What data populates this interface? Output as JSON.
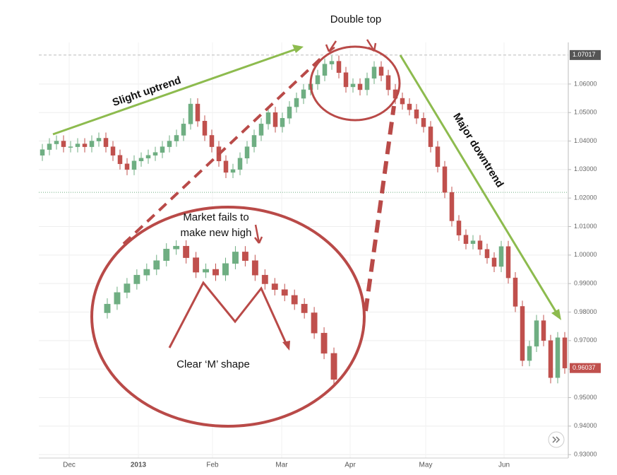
{
  "chart_data": {
    "type": "candlestick",
    "title": "Double top",
    "annotations": {
      "uptrend": "Slight uptrend",
      "downtrend": "Major downtrend",
      "fails_line1": "Market fails to",
      "fails_line2": "make new high",
      "m_shape": "Clear ‘M’ shape"
    },
    "open": [
      1.035,
      1.037,
      1.039,
      1.04,
      1.038,
      1.038,
      1.039,
      1.038,
      1.04,
      1.041,
      1.038,
      1.035,
      1.032,
      1.03,
      1.033,
      1.034,
      1.035,
      1.036,
      1.038,
      1.04,
      1.042,
      1.046,
      1.053,
      1.047,
      1.042,
      1.038,
      1.033,
      1.029,
      1.03,
      1.034,
      1.038,
      1.042,
      1.046,
      1.05,
      1.045,
      1.048,
      1.052,
      1.055,
      1.058,
      1.06,
      1.063,
      1.067,
      1.068,
      1.064,
      1.059,
      1.06,
      1.058,
      1.062,
      1.066,
      1.063,
      1.058,
      1.055,
      1.053,
      1.051,
      1.048,
      1.045,
      1.038,
      1.031,
      1.022,
      1.012,
      1.007,
      1.004,
      1.005,
      1.002,
      0.999,
      0.996,
      1.003,
      0.992,
      0.982,
      0.963,
      0.968,
      0.977,
      0.97,
      0.957,
      0.971
    ],
    "high": [
      1.039,
      1.041,
      1.042,
      1.042,
      1.04,
      1.041,
      1.041,
      1.042,
      1.043,
      1.043,
      1.04,
      1.037,
      1.034,
      1.035,
      1.036,
      1.037,
      1.038,
      1.04,
      1.042,
      1.044,
      1.048,
      1.055,
      1.055,
      1.049,
      1.044,
      1.04,
      1.035,
      1.032,
      1.036,
      1.04,
      1.044,
      1.048,
      1.052,
      1.052,
      1.05,
      1.054,
      1.057,
      1.06,
      1.062,
      1.065,
      1.069,
      1.07,
      1.07,
      1.066,
      1.062,
      1.062,
      1.064,
      1.068,
      1.068,
      1.065,
      1.06,
      1.057,
      1.055,
      1.053,
      1.05,
      1.047,
      1.04,
      1.033,
      1.024,
      1.014,
      1.009,
      1.007,
      1.007,
      1.004,
      1.001,
      1.005,
      1.005,
      0.994,
      0.984,
      0.97,
      0.979,
      0.979,
      0.972,
      0.973,
      0.973
    ],
    "low": [
      1.033,
      1.035,
      1.037,
      1.036,
      1.036,
      1.036,
      1.036,
      1.036,
      1.038,
      1.036,
      1.033,
      1.03,
      1.028,
      1.028,
      1.031,
      1.032,
      1.033,
      1.034,
      1.036,
      1.038,
      1.04,
      1.044,
      1.045,
      1.04,
      1.036,
      1.031,
      1.027,
      1.027,
      1.028,
      1.032,
      1.036,
      1.04,
      1.044,
      1.043,
      1.043,
      1.046,
      1.05,
      1.053,
      1.056,
      1.058,
      1.061,
      1.065,
      1.062,
      1.057,
      1.057,
      1.056,
      1.056,
      1.06,
      1.061,
      1.056,
      1.053,
      1.051,
      1.049,
      1.046,
      1.043,
      1.036,
      1.029,
      1.02,
      1.01,
      1.005,
      1.002,
      1.002,
      1.0,
      0.997,
      0.994,
      0.994,
      0.99,
      0.98,
      0.961,
      0.961,
      0.966,
      0.968,
      0.955,
      0.955,
      0.95837
    ],
    "close": [
      1.037,
      1.039,
      1.04,
      1.038,
      1.038,
      1.039,
      1.038,
      1.04,
      1.041,
      1.038,
      1.035,
      1.032,
      1.03,
      1.033,
      1.034,
      1.035,
      1.036,
      1.038,
      1.04,
      1.042,
      1.046,
      1.053,
      1.047,
      1.042,
      1.038,
      1.033,
      1.029,
      1.03,
      1.034,
      1.038,
      1.042,
      1.046,
      1.05,
      1.045,
      1.048,
      1.052,
      1.055,
      1.058,
      1.06,
      1.063,
      1.067,
      1.068,
      1.064,
      1.059,
      1.06,
      1.058,
      1.062,
      1.066,
      1.063,
      1.058,
      1.055,
      1.053,
      1.051,
      1.048,
      1.045,
      1.038,
      1.031,
      1.022,
      1.012,
      1.007,
      1.004,
      1.005,
      1.002,
      0.999,
      0.996,
      1.003,
      0.992,
      0.982,
      0.963,
      0.968,
      0.977,
      0.97,
      0.957,
      0.971,
      0.96037
    ],
    "up_color": "#6fae82",
    "down_color": "#c0504d",
    "high_line": 1.07017,
    "level_line": 1.022,
    "xlim": [
      0,
      75
    ],
    "xticks": [
      {
        "value": 4.3,
        "label": "Dec"
      },
      {
        "value": 14.1,
        "label": "2013"
      },
      {
        "value": 24.6,
        "label": "Feb"
      },
      {
        "value": 34.4,
        "label": "Mar"
      },
      {
        "value": 44.1,
        "label": "Apr"
      },
      {
        "value": 54.8,
        "label": "May"
      },
      {
        "value": 65.9,
        "label": "Jun"
      }
    ],
    "ylim": [
      0.9288,
      1.0746
    ],
    "yticks": [
      {
        "value": 0.93,
        "label": "0.93000"
      },
      {
        "value": 0.94,
        "label": "0.94000"
      },
      {
        "value": 0.95,
        "label": "0.95000"
      },
      {
        "value": 0.96,
        "label": "0.96000"
      },
      {
        "value": 0.97,
        "label": "0.97000"
      },
      {
        "value": 0.98,
        "label": "0.98000"
      },
      {
        "value": 0.99,
        "label": "0.99000"
      },
      {
        "value": 1.0,
        "label": "1.00000"
      },
      {
        "value": 1.01,
        "label": "1.01000"
      },
      {
        "value": 1.02,
        "label": "1.02000"
      },
      {
        "value": 1.03,
        "label": "1.03000"
      },
      {
        "value": 1.04,
        "label": "1.04000"
      },
      {
        "value": 1.05,
        "label": "1.05000"
      },
      {
        "value": 1.06,
        "label": "1.06000"
      }
    ],
    "grid": true,
    "inset_range": [
      34,
      57
    ]
  }
}
